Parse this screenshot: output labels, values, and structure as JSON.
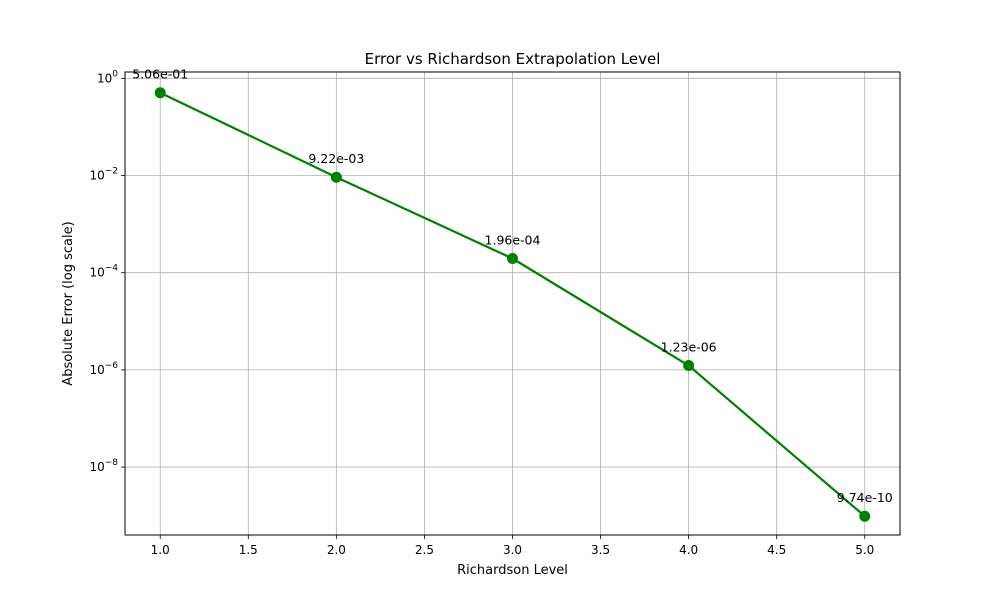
{
  "chart_data": {
    "type": "line",
    "title": "Error vs Richardson Extrapolation Level",
    "xlabel": "Richardson Level",
    "ylabel": "Absolute Error (log scale)",
    "x": [
      1,
      2,
      3,
      4,
      5
    ],
    "y": [
      0.506,
      0.00922,
      0.000196,
      1.23e-06,
      9.74e-10
    ],
    "data_labels": [
      "5.06e-01",
      "9.22e-03",
      "1.96e-04",
      "1.23e-06",
      "9.74e-10"
    ],
    "xlim": [
      0.8,
      5.2
    ],
    "ylim": [
      4e-10,
      1.35
    ],
    "yscale": "log",
    "xticks": [
      1.0,
      1.5,
      2.0,
      2.5,
      3.0,
      3.5,
      4.0,
      4.5,
      5.0
    ],
    "xtick_labels": [
      "1.0",
      "1.5",
      "2.0",
      "2.5",
      "3.0",
      "3.5",
      "4.0",
      "4.5",
      "5.0"
    ],
    "yticks": [
      1,
      0.01,
      0.0001,
      1e-06,
      1e-08
    ],
    "ytick_bases": [
      "10",
      "10",
      "10",
      "10",
      "10"
    ],
    "ytick_exponents": [
      "0",
      "−2",
      "−4",
      "−6",
      "−8"
    ],
    "grid": true,
    "line_color": "#008000",
    "marker": "circle"
  }
}
